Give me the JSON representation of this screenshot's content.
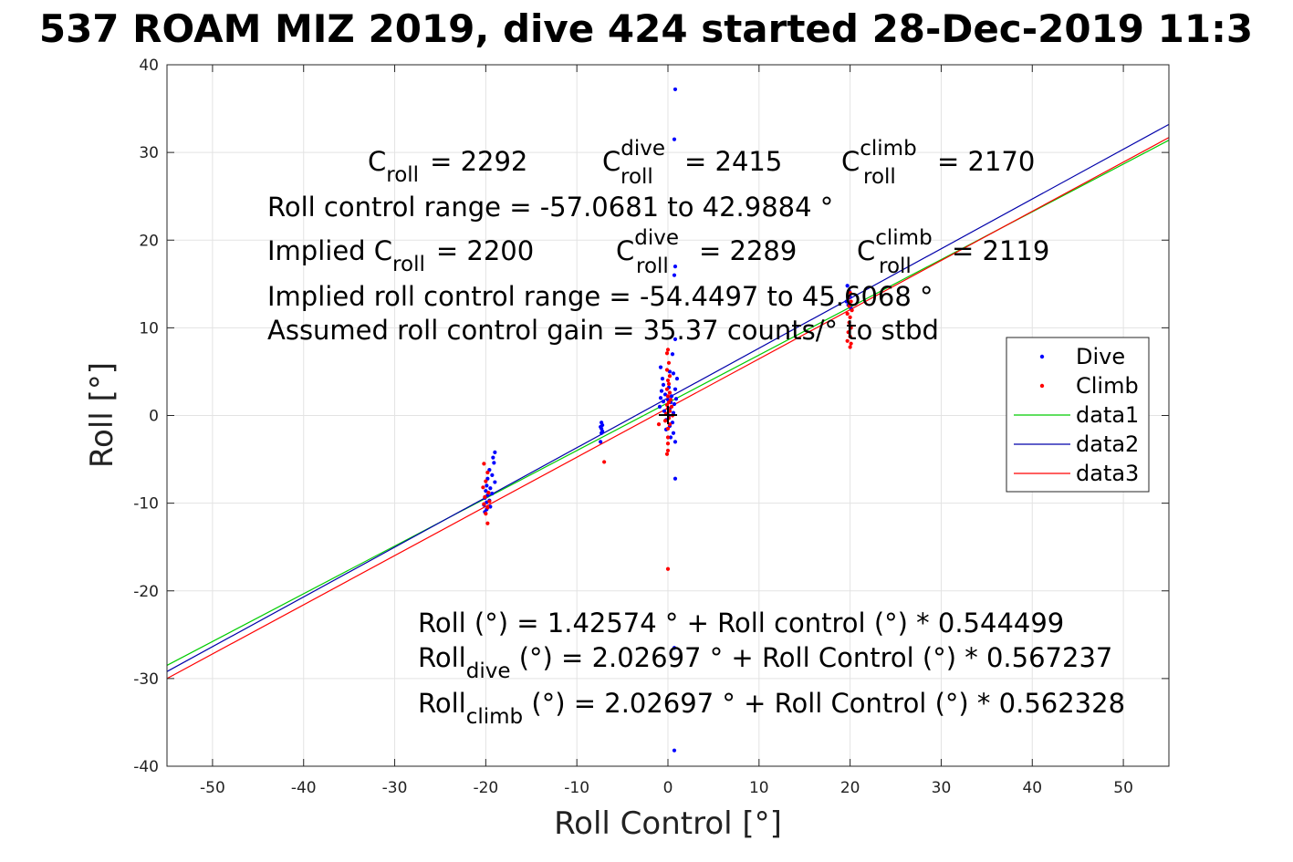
{
  "chart_data": {
    "type": "scatter",
    "title": "537 ROAM MIZ 2019, dive 424 started 28-Dec-2019 11:3",
    "xlabel": "Roll Control [°]",
    "ylabel": "Roll [°]",
    "xlim": [
      -55,
      55
    ],
    "ylim": [
      -40,
      40
    ],
    "xticks": [
      -50,
      -40,
      -30,
      -20,
      -10,
      0,
      10,
      20,
      30,
      40,
      50
    ],
    "yticks": [
      -40,
      -30,
      -20,
      -10,
      0,
      10,
      20,
      30,
      40
    ],
    "xtick_labels": [
      "-50",
      "-40",
      "-30",
      "-20",
      "-10",
      "0",
      "10",
      "20",
      "30",
      "40",
      "50"
    ],
    "ytick_labels": [
      "-40",
      "-30",
      "-20",
      "-10",
      "0",
      "10",
      "20",
      "30",
      "40"
    ],
    "grid": true,
    "legend": {
      "placement": "right",
      "entries": [
        {
          "label": "Dive",
          "kind": "marker",
          "color": "#0000ff"
        },
        {
          "label": "Climb",
          "kind": "marker",
          "color": "#ff0000"
        },
        {
          "label": "data1",
          "kind": "line",
          "color": "#00cc00"
        },
        {
          "label": "data2",
          "kind": "line",
          "color": "#0000aa"
        },
        {
          "label": "data3",
          "kind": "line",
          "color": "#ff0000"
        }
      ]
    },
    "series": [
      {
        "name": "Dive",
        "kind": "scatter",
        "color": "#0000ff",
        "points": [
          [
            0.8,
            37.2
          ],
          [
            0.7,
            31.5
          ],
          [
            0.8,
            17.0
          ],
          [
            0.7,
            16.0
          ],
          [
            0.8,
            8.7
          ],
          [
            0.5,
            7.0
          ],
          [
            -0.8,
            5.5
          ],
          [
            0.2,
            5.0
          ],
          [
            0.6,
            4.8
          ],
          [
            -0.6,
            4.2
          ],
          [
            1.0,
            4.2
          ],
          [
            -0.5,
            3.5
          ],
          [
            0.1,
            3.2
          ],
          [
            0.8,
            3.0
          ],
          [
            -0.7,
            2.8
          ],
          [
            -0.3,
            2.4
          ],
          [
            0.4,
            2.2
          ],
          [
            -0.8,
            2.0
          ],
          [
            0.9,
            1.9
          ],
          [
            0.0,
            1.8
          ],
          [
            -0.5,
            1.6
          ],
          [
            0.3,
            1.5
          ],
          [
            0.7,
            1.3
          ],
          [
            -0.9,
            1.0
          ],
          [
            0.2,
            0.8
          ],
          [
            -0.4,
            0.5
          ],
          [
            0.6,
            0.3
          ],
          [
            0.1,
            0.0
          ],
          [
            -0.2,
            -0.5
          ],
          [
            0.5,
            -0.8
          ],
          [
            0.2,
            -1.2
          ],
          [
            -0.2,
            -1.6
          ],
          [
            0.6,
            -2.0
          ],
          [
            0.3,
            -2.5
          ],
          [
            0.8,
            -3.0
          ],
          [
            0.8,
            -7.2
          ],
          [
            0.7,
            -26.5
          ],
          [
            0.7,
            -38.2
          ],
          [
            -19.0,
            -4.2
          ],
          [
            -19.2,
            -4.8
          ],
          [
            -19.1,
            -5.4
          ],
          [
            -19.6,
            -6.2
          ],
          [
            -19.3,
            -6.8
          ],
          [
            -19.8,
            -7.2
          ],
          [
            -19.0,
            -7.6
          ],
          [
            -19.9,
            -8.0
          ],
          [
            -19.5,
            -8.3
          ],
          [
            -20.0,
            -8.6
          ],
          [
            -19.3,
            -8.9
          ],
          [
            -19.8,
            -9.1
          ],
          [
            -20.1,
            -9.4
          ],
          [
            -19.6,
            -9.7
          ],
          [
            -19.9,
            -9.9
          ],
          [
            -20.2,
            -10.2
          ],
          [
            -19.5,
            -10.4
          ],
          [
            -19.9,
            -10.7
          ],
          [
            -20.1,
            -11.0
          ],
          [
            -7.3,
            -0.8
          ],
          [
            -7.2,
            -1.1
          ],
          [
            -7.4,
            -1.3
          ],
          [
            -7.3,
            -1.5
          ],
          [
            -7.2,
            -1.8
          ],
          [
            -7.3,
            -2.0
          ],
          [
            -7.4,
            -3.0
          ],
          [
            19.7,
            14.8
          ],
          [
            19.9,
            14.2
          ],
          [
            20.0,
            13.5
          ],
          [
            19.6,
            13.0
          ],
          [
            19.8,
            12.6
          ],
          [
            20.1,
            12.2
          ]
        ]
      },
      {
        "name": "Climb",
        "kind": "scatter",
        "color": "#ff0000",
        "points": [
          [
            0.0,
            7.5
          ],
          [
            -0.1,
            7.1
          ],
          [
            0.1,
            6.0
          ],
          [
            -0.1,
            5.2
          ],
          [
            0.2,
            4.5
          ],
          [
            0.0,
            4.0
          ],
          [
            0.1,
            3.6
          ],
          [
            -0.1,
            3.0
          ],
          [
            0.2,
            2.6
          ],
          [
            0.0,
            2.2
          ],
          [
            0.3,
            1.8
          ],
          [
            0.1,
            1.5
          ],
          [
            -0.1,
            1.2
          ],
          [
            0.4,
            1.0
          ],
          [
            0.0,
            0.8
          ],
          [
            0.2,
            0.5
          ],
          [
            -0.2,
            0.2
          ],
          [
            0.5,
            0.0
          ],
          [
            0.1,
            -0.3
          ],
          [
            -0.3,
            -0.6
          ],
          [
            0.2,
            -1.0
          ],
          [
            -1.0,
            -1.0
          ],
          [
            0.0,
            -1.5
          ],
          [
            0.0,
            -2.5
          ],
          [
            0.0,
            -3.2
          ],
          [
            0.0,
            -4.0
          ],
          [
            -0.1,
            -4.4
          ],
          [
            0.0,
            -17.5
          ],
          [
            -20.2,
            -5.5
          ],
          [
            -19.8,
            -6.5
          ],
          [
            -20.0,
            -7.5
          ],
          [
            -20.3,
            -8.2
          ],
          [
            -19.7,
            -8.8
          ],
          [
            -20.1,
            -9.3
          ],
          [
            -19.6,
            -9.8
          ],
          [
            -20.2,
            -10.1
          ],
          [
            -19.8,
            -10.5
          ],
          [
            -20.0,
            -11.2
          ],
          [
            -19.8,
            -12.3
          ],
          [
            -7.0,
            -5.3
          ],
          [
            20.0,
            14.0
          ],
          [
            19.8,
            13.5
          ],
          [
            20.1,
            13.0
          ],
          [
            19.9,
            12.5
          ],
          [
            20.2,
            12.0
          ],
          [
            19.7,
            11.6
          ],
          [
            20.0,
            11.2
          ],
          [
            19.9,
            10.6
          ],
          [
            20.1,
            10.0
          ],
          [
            19.8,
            9.5
          ],
          [
            20.0,
            9.0
          ],
          [
            19.7,
            8.5
          ],
          [
            20.1,
            8.2
          ],
          [
            20.0,
            7.8
          ]
        ]
      },
      {
        "name": "data1",
        "kind": "line",
        "color": "#00cc00",
        "x": [
          -55,
          55
        ],
        "y": [
          -28.5,
          31.4
        ]
      },
      {
        "name": "data2",
        "kind": "line",
        "color": "#0000aa",
        "x": [
          -55,
          55
        ],
        "y": [
          -29.2,
          33.2
        ]
      },
      {
        "name": "data3",
        "kind": "line",
        "color": "#ff0000",
        "x": [
          -55,
          55
        ],
        "y": [
          -30.0,
          31.7
        ]
      }
    ],
    "annotations": {
      "c_roll": {
        "base": "C",
        "sub": "roll",
        "value": "= 2292"
      },
      "c_roll_dive": {
        "base": "C",
        "sup": "dive",
        "sub": "roll",
        "value": "= 2415"
      },
      "c_roll_climb": {
        "base": "C",
        "sup": "climb",
        "sub": "roll",
        "value": "= 2170"
      },
      "roll_control_range": "Roll control range = -57.0681 to 42.9884 °",
      "implied_c_roll": {
        "pre": "Implied C",
        "sub": "roll",
        "value": "= 2200"
      },
      "implied_c_roll_dive": {
        "base": "C",
        "sup": "dive",
        "sub": "roll",
        "value": "= 2289"
      },
      "implied_c_roll_climb": {
        "base": "C",
        "sup": "climb",
        "sub": "roll",
        "value": "= 2119"
      },
      "implied_range": "Implied roll control range = -54.4497 to 45.6068 °",
      "gain": "Assumed roll control gain = 35.37 counts/° to stbd",
      "fit_all": "Roll (°) = 1.42574 ° + Roll control (°) * 0.544499",
      "fit_dive": {
        "base": "Roll",
        "sub": "dive",
        "rest": " (°) = 2.02697 ° + Roll Control (°) * 0.567237"
      },
      "fit_climb": {
        "base": "Roll",
        "sub": "climb",
        "rest": " (°) = 2.02697 ° + Roll Control (°) * 0.562328"
      }
    }
  }
}
